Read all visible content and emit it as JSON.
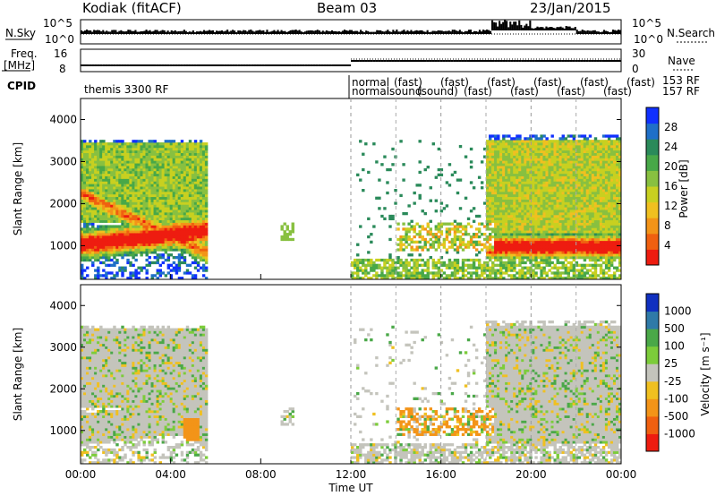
{
  "header": {
    "station": "Kodiak (fitACF)",
    "beam": "Beam 03",
    "date": "23/Jan/2015"
  },
  "top_panels": {
    "nsky": {
      "label": "N.Sky",
      "ticks": [
        "10^5",
        "10^0"
      ]
    },
    "nsearch": {
      "label": "N.Search",
      "ticks": [
        "10^5",
        "10^0"
      ]
    },
    "freq": {
      "label_line1": "Freq.",
      "label_line2": "[MHz]",
      "ticks": [
        "16",
        "8"
      ]
    },
    "nave": {
      "label": "Nave",
      "ticks": [
        "30",
        "0"
      ]
    },
    "cpid": {
      "label": "CPID",
      "left_text": "themis 3300 RF",
      "right_line1": "normal",
      "right_line2": "normalsound",
      "right_tail": "153 RF",
      "right_tail2": "157 RF",
      "overlap_texts": [
        "(fast)",
        "(sound)",
        "(fast)",
        "(fast)",
        "(fast)",
        "(fast)",
        "(fast)",
        "(fast)",
        "(fast)",
        "(fast)",
        "(fast)"
      ]
    }
  },
  "chart_data": [
    {
      "type": "heatmap",
      "name": "power",
      "ylabel": "Slant Range [km]",
      "ylim": [
        200,
        4500
      ],
      "yticks": [
        1000,
        2000,
        3000,
        4000
      ],
      "xlim": [
        0,
        24
      ],
      "colorbar": {
        "label": "Power [dB]",
        "ticks": [
          28,
          24,
          20,
          16,
          12,
          8,
          4
        ],
        "range": [
          0,
          32
        ],
        "colors": [
          "#1030ff",
          "#1f6fc8",
          "#2a8a5a",
          "#48a848",
          "#88c040",
          "#c8d020",
          "#f0c020",
          "#f39418",
          "#f06010",
          "#ee1c10"
        ]
      },
      "regions": [
        {
          "t0": 0.0,
          "t1": 5.5,
          "r0": 400,
          "r1": 3500,
          "kind": "morning"
        },
        {
          "t0": 8.8,
          "t1": 9.5,
          "r0": 1100,
          "r1": 1500,
          "kind": "patch"
        },
        {
          "t0": 12.0,
          "t1": 24.0,
          "r0": 200,
          "r1": 700,
          "kind": "near"
        },
        {
          "t0": 14.0,
          "t1": 18.5,
          "r0": 900,
          "r1": 1500,
          "kind": "patch"
        },
        {
          "t0": 18.0,
          "t1": 24.0,
          "r0": 600,
          "r1": 3600,
          "kind": "evening"
        }
      ]
    },
    {
      "type": "heatmap",
      "name": "velocity",
      "ylabel": "Slant Range [km]",
      "ylim": [
        200,
        4500
      ],
      "yticks": [
        1000,
        2000,
        3000,
        4000
      ],
      "xlim": [
        0,
        24
      ],
      "xticks": [
        "00:00",
        "04:00",
        "08:00",
        "12:00",
        "16:00",
        "20:00",
        "00:00"
      ],
      "xlabel": "Time UT",
      "colorbar": {
        "label": "Velocity [m s⁻¹]",
        "ticks": [
          1000,
          500,
          100,
          25,
          -25,
          -100,
          -500,
          -1000
        ],
        "colors": [
          "#1030c0",
          "#2f7aa8",
          "#4aa848",
          "#7ccc3a",
          "#c4c4bc",
          "#f0c020",
          "#f39418",
          "#f06010",
          "#ee1c10"
        ]
      }
    }
  ]
}
